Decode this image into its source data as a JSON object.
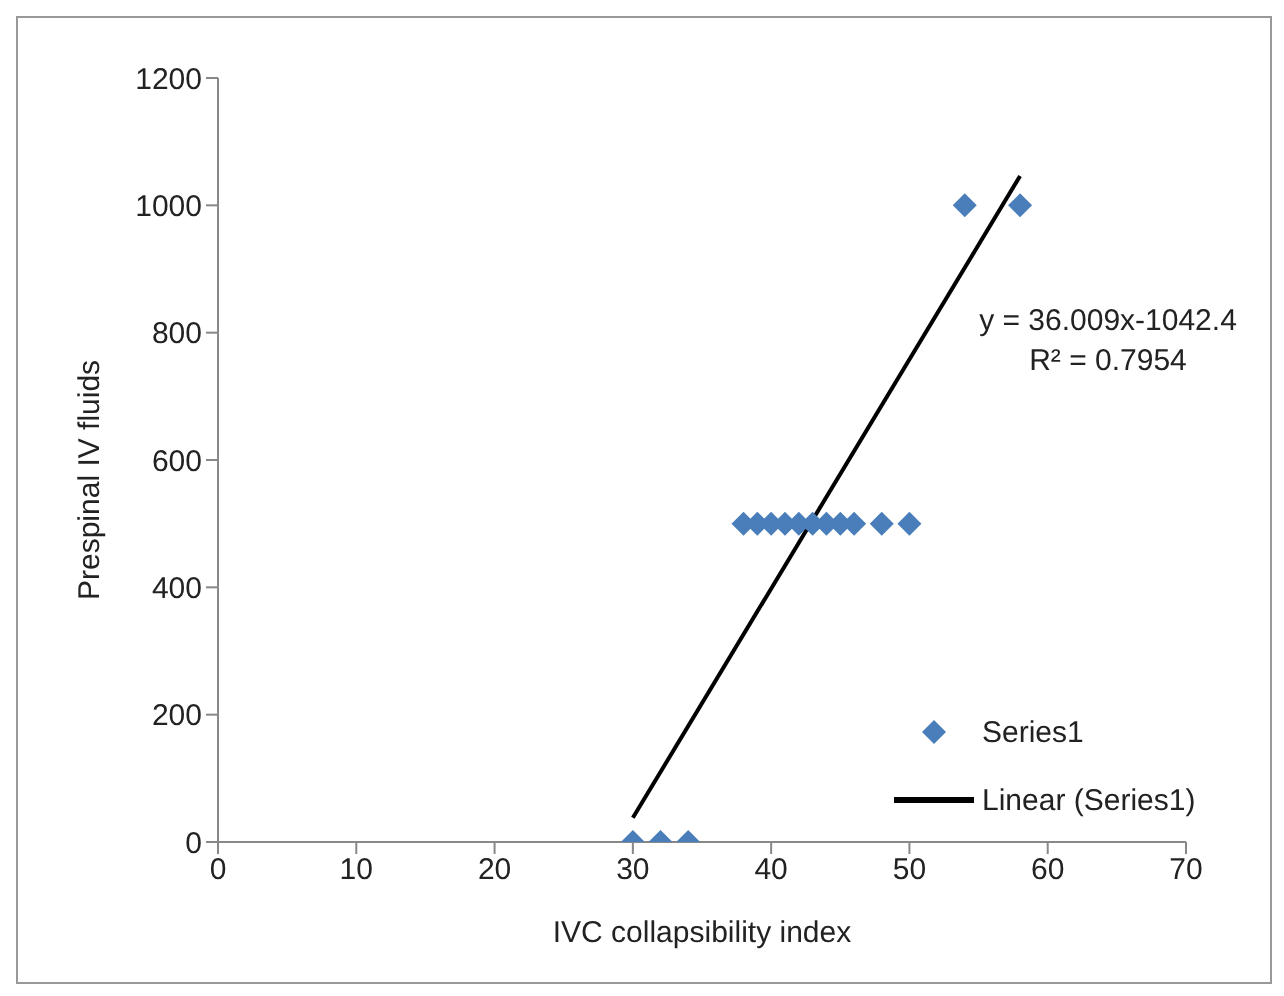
{
  "chart_data": {
    "type": "scatter",
    "xlabel": "IVC collapsibility index",
    "ylabel": "Prespinal IV fluids",
    "xlim": [
      0,
      70
    ],
    "xticks": [
      0,
      10,
      20,
      30,
      40,
      50,
      60,
      70
    ],
    "ylim": [
      0,
      1200
    ],
    "yticks": [
      0,
      200,
      400,
      600,
      800,
      1000,
      1200
    ],
    "legend": "bottom right",
    "series": [
      {
        "name": "Series1",
        "marker": "diamond",
        "color": "#4a7ebb",
        "x": [
          30,
          32,
          34,
          38,
          39,
          40,
          41,
          42,
          43,
          44,
          45,
          46,
          48,
          50,
          54,
          58
        ],
        "values": [
          0,
          0,
          0,
          500,
          500,
          500,
          500,
          500,
          500,
          500,
          500,
          500,
          500,
          500,
          1000,
          1000
        ]
      },
      {
        "name": "Linear (Series1)",
        "type": "line",
        "marker": "none",
        "color": "#000000",
        "x": [
          30,
          58
        ],
        "values": [
          38,
          1046
        ]
      }
    ],
    "annotations": [
      "y = 36.009x-1042.4",
      "R² = 0.7954"
    ]
  }
}
